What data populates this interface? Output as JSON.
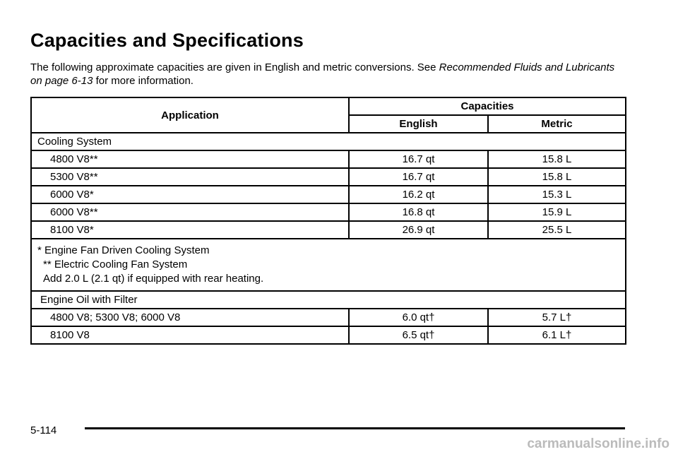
{
  "header": {
    "title": "Capacities and Specifications"
  },
  "intro": {
    "parts": [
      "The following approximate capacities are given in English and metric conversions. See ",
      "Recommended Fluids and Lubricants on page 6-13",
      " for more information."
    ]
  },
  "table": {
    "headers": {
      "application": "Application",
      "capacities": "Capacities",
      "english": "English",
      "metric": "Metric"
    },
    "sections": [
      {
        "title": "Cooling System",
        "rows": [
          [
            "4800 V8**",
            "16.7 qt",
            "15.8 L"
          ],
          [
            "5300 V8**",
            "16.7 qt",
            "15.8 L"
          ],
          [
            "6000 V8*",
            "16.2 qt",
            "15.3 L"
          ],
          [
            "6000 V8**",
            "16.8 qt",
            "15.9 L"
          ],
          [
            "8100 V8*",
            "26.9 qt",
            "25.5 L"
          ]
        ],
        "notes": [
          "* Engine Fan Driven Cooling System",
          "** Electric Cooling Fan System",
          "Add 2.0 L (2.1 qt) if equipped with rear heating."
        ]
      },
      {
        "title": "Engine Oil with Filter",
        "rows": [
          [
            "4800 V8; 5300 V8; 6000 V8",
            "6.0 qt†",
            "5.7 L†"
          ],
          [
            "8100 V8",
            "6.5 qt†",
            "6.1 L†"
          ]
        ]
      }
    ]
  },
  "footer": {
    "page": "5-114",
    "watermark": "carmanualsonline.info"
  }
}
